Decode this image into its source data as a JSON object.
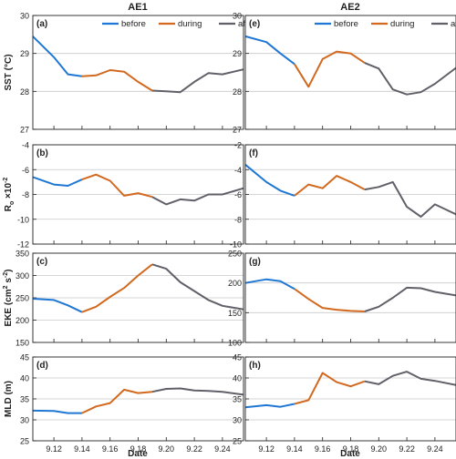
{
  "figure": {
    "column_titles": [
      "AE1",
      "AE2"
    ],
    "xlabel": "Date",
    "legend": [
      "before",
      "during",
      "after"
    ],
    "colors": {
      "before": "#1f77d4",
      "during": "#d2691e",
      "after": "#606068",
      "grid": "#c8c8c8"
    }
  },
  "chart_data": [
    {
      "type": "line",
      "panel": "(a)",
      "column": "AE1",
      "ylabel": "SST (°C)",
      "ylim": [
        27,
        30
      ],
      "yticks": [
        27,
        28,
        29,
        30
      ],
      "ytick_labels": [
        "27",
        "28",
        "29",
        "30"
      ],
      "xlim": [
        9.105,
        9.255
      ],
      "xticks": [
        "9.12",
        "9.14",
        "9.16",
        "9.18",
        "9.20",
        "9.22",
        "9.24"
      ],
      "grid": true,
      "legend_position": "top",
      "series": [
        {
          "name": "before",
          "x": [
            9.105,
            9.12,
            9.13,
            9.14
          ],
          "y": [
            29.45,
            28.9,
            28.45,
            28.4
          ]
        },
        {
          "name": "during",
          "x": [
            9.14,
            9.15,
            9.16,
            9.17,
            9.18,
            9.19
          ],
          "y": [
            28.4,
            28.42,
            28.56,
            28.52,
            28.25,
            28.02
          ]
        },
        {
          "name": "after",
          "x": [
            9.19,
            9.2,
            9.21,
            9.22,
            9.23,
            9.24,
            9.255
          ],
          "y": [
            28.02,
            28.0,
            27.98,
            28.25,
            28.48,
            28.45,
            28.58
          ]
        }
      ]
    },
    {
      "type": "line",
      "panel": "(e)",
      "column": "AE2",
      "ylabel": "",
      "ylim": [
        27,
        30
      ],
      "yticks": [
        27,
        28,
        29,
        30
      ],
      "ytick_labels": [
        "27",
        "28",
        "29",
        "30"
      ],
      "xlim": [
        9.105,
        9.255
      ],
      "xticks": [
        "9.12",
        "9.14",
        "9.16",
        "9.18",
        "9.20",
        "9.22",
        "9.24"
      ],
      "grid": true,
      "legend_position": "top",
      "series": [
        {
          "name": "before",
          "x": [
            9.105,
            9.12,
            9.13,
            9.14
          ],
          "y": [
            29.45,
            29.3,
            29.0,
            28.72
          ]
        },
        {
          "name": "during",
          "x": [
            9.14,
            9.15,
            9.16,
            9.17,
            9.18,
            9.19
          ],
          "y": [
            28.72,
            28.12,
            28.85,
            29.05,
            29.0,
            28.75
          ]
        },
        {
          "name": "after",
          "x": [
            9.19,
            9.2,
            9.21,
            9.22,
            9.23,
            9.24,
            9.255
          ],
          "y": [
            28.75,
            28.6,
            28.05,
            27.92,
            27.98,
            28.2,
            28.62
          ]
        }
      ]
    },
    {
      "type": "line",
      "panel": "(b)",
      "column": "AE1",
      "ylabel": "R_o ×10^-2",
      "ylim": [
        -12,
        -4
      ],
      "yticks": [
        -12,
        -10,
        -8,
        -6,
        -4
      ],
      "ytick_labels": [
        "-12",
        "-10",
        "-8",
        "-6",
        "-4"
      ],
      "xlim": [
        9.105,
        9.255
      ],
      "xticks": [
        "9.12",
        "9.14",
        "9.16",
        "9.18",
        "9.20",
        "9.22",
        "9.24"
      ],
      "grid": true,
      "series": [
        {
          "name": "before",
          "x": [
            9.105,
            9.12,
            9.13,
            9.14
          ],
          "y": [
            -6.6,
            -7.2,
            -7.3,
            -6.8
          ]
        },
        {
          "name": "during",
          "x": [
            9.14,
            9.15,
            9.16,
            9.17,
            9.18,
            9.19
          ],
          "y": [
            -6.8,
            -6.4,
            -6.9,
            -8.1,
            -7.9,
            -8.2
          ]
        },
        {
          "name": "after",
          "x": [
            9.19,
            9.2,
            9.21,
            9.22,
            9.23,
            9.24,
            9.255
          ],
          "y": [
            -8.2,
            -8.8,
            -8.4,
            -8.5,
            -8.0,
            -8.0,
            -7.5
          ]
        }
      ]
    },
    {
      "type": "line",
      "panel": "(f)",
      "column": "AE2",
      "ylabel": "",
      "ylim": [
        -10,
        -2
      ],
      "yticks": [
        -10,
        -8,
        -6,
        -4,
        -2
      ],
      "ytick_labels": [
        "-10",
        "-8",
        "-6",
        "-4",
        "-2"
      ],
      "xlim": [
        9.105,
        9.255
      ],
      "xticks": [
        "9.12",
        "9.14",
        "9.16",
        "9.18",
        "9.20",
        "9.22",
        "9.24"
      ],
      "grid": true,
      "series": [
        {
          "name": "before",
          "x": [
            9.105,
            9.12,
            9.13,
            9.14
          ],
          "y": [
            -3.6,
            -5.0,
            -5.7,
            -6.1
          ]
        },
        {
          "name": "during",
          "x": [
            9.14,
            9.15,
            9.16,
            9.17,
            9.18,
            9.19
          ],
          "y": [
            -6.1,
            -5.2,
            -5.5,
            -4.5,
            -5.0,
            -5.6
          ]
        },
        {
          "name": "after",
          "x": [
            9.19,
            9.2,
            9.21,
            9.22,
            9.23,
            9.24,
            9.255
          ],
          "y": [
            -5.6,
            -5.4,
            -5.0,
            -7.0,
            -7.8,
            -6.8,
            -7.6
          ]
        }
      ]
    },
    {
      "type": "line",
      "panel": "(c)",
      "column": "AE1",
      "ylabel": "EKE (cm^2 s^-2)",
      "ylim": [
        150,
        350
      ],
      "yticks": [
        150,
        200,
        250,
        300,
        350
      ],
      "ytick_labels": [
        "150",
        "200",
        "250",
        "300",
        "350"
      ],
      "xlim": [
        9.105,
        9.255
      ],
      "xticks": [
        "9.12",
        "9.14",
        "9.16",
        "9.18",
        "9.20",
        "9.22",
        "9.24"
      ],
      "grid": true,
      "series": [
        {
          "name": "before",
          "x": [
            9.105,
            9.12,
            9.13,
            9.14
          ],
          "y": [
            248,
            245,
            233,
            218
          ]
        },
        {
          "name": "during",
          "x": [
            9.14,
            9.15,
            9.16,
            9.17,
            9.18,
            9.19
          ],
          "y": [
            218,
            230,
            252,
            272,
            300,
            325
          ]
        },
        {
          "name": "after",
          "x": [
            9.19,
            9.2,
            9.21,
            9.22,
            9.23,
            9.24,
            9.255
          ],
          "y": [
            325,
            315,
            285,
            265,
            245,
            232,
            224
          ]
        }
      ]
    },
    {
      "type": "line",
      "panel": "(g)",
      "column": "AE2",
      "ylabel": "",
      "ylim": [
        100,
        250
      ],
      "yticks": [
        100,
        150,
        200,
        250
      ],
      "ytick_labels": [
        "100",
        "150",
        "200",
        "250"
      ],
      "xlim": [
        9.105,
        9.255
      ],
      "xticks": [
        "9.12",
        "9.14",
        "9.16",
        "9.18",
        "9.20",
        "9.22",
        "9.24"
      ],
      "grid": true,
      "series": [
        {
          "name": "before",
          "x": [
            9.105,
            9.12,
            9.13,
            9.14
          ],
          "y": [
            200,
            206,
            203,
            190
          ]
        },
        {
          "name": "during",
          "x": [
            9.14,
            9.15,
            9.16,
            9.17,
            9.18,
            9.19
          ],
          "y": [
            190,
            173,
            158,
            155,
            153,
            152
          ]
        },
        {
          "name": "after",
          "x": [
            9.19,
            9.2,
            9.21,
            9.22,
            9.23,
            9.24,
            9.255
          ],
          "y": [
            152,
            160,
            175,
            192,
            191,
            185,
            179
          ]
        }
      ]
    },
    {
      "type": "line",
      "panel": "(d)",
      "column": "AE1",
      "ylabel": "MLD (m)",
      "ylim": [
        25,
        45
      ],
      "yticks": [
        25,
        30,
        35,
        40,
        45
      ],
      "ytick_labels": [
        "25",
        "30",
        "35",
        "40",
        "45"
      ],
      "xlim": [
        9.105,
        9.255
      ],
      "xticks": [
        "9.12",
        "9.14",
        "9.16",
        "9.18",
        "9.20",
        "9.22",
        "9.24"
      ],
      "grid": true,
      "series": [
        {
          "name": "before",
          "x": [
            9.105,
            9.12,
            9.13,
            9.14
          ],
          "y": [
            32.2,
            32.1,
            31.6,
            31.6
          ]
        },
        {
          "name": "during",
          "x": [
            9.14,
            9.15,
            9.16,
            9.17,
            9.18,
            9.19
          ],
          "y": [
            31.6,
            33.2,
            34.0,
            37.2,
            36.4,
            36.7
          ]
        },
        {
          "name": "after",
          "x": [
            9.19,
            9.2,
            9.21,
            9.22,
            9.23,
            9.24,
            9.255
          ],
          "y": [
            36.7,
            37.4,
            37.5,
            37.0,
            36.9,
            36.7,
            36.0
          ]
        }
      ]
    },
    {
      "type": "line",
      "panel": "(h)",
      "column": "AE2",
      "ylabel": "",
      "ylim": [
        25,
        45
      ],
      "yticks": [
        25,
        30,
        35,
        40,
        45
      ],
      "ytick_labels": [
        "25",
        "30",
        "35",
        "40",
        "45"
      ],
      "xlim": [
        9.105,
        9.255
      ],
      "xticks": [
        "9.12",
        "9.14",
        "9.16",
        "9.18",
        "9.20",
        "9.22",
        "9.24"
      ],
      "grid": true,
      "series": [
        {
          "name": "before",
          "x": [
            9.105,
            9.12,
            9.13,
            9.14
          ],
          "y": [
            33.0,
            33.5,
            33.1,
            33.8
          ]
        },
        {
          "name": "during",
          "x": [
            9.14,
            9.15,
            9.16,
            9.17,
            9.18,
            9.19
          ],
          "y": [
            33.8,
            34.7,
            41.2,
            39.0,
            38.0,
            39.2
          ]
        },
        {
          "name": "after",
          "x": [
            9.19,
            9.2,
            9.21,
            9.22,
            9.23,
            9.24,
            9.255
          ],
          "y": [
            39.2,
            38.5,
            40.5,
            41.5,
            39.8,
            39.3,
            38.3
          ]
        }
      ]
    }
  ]
}
